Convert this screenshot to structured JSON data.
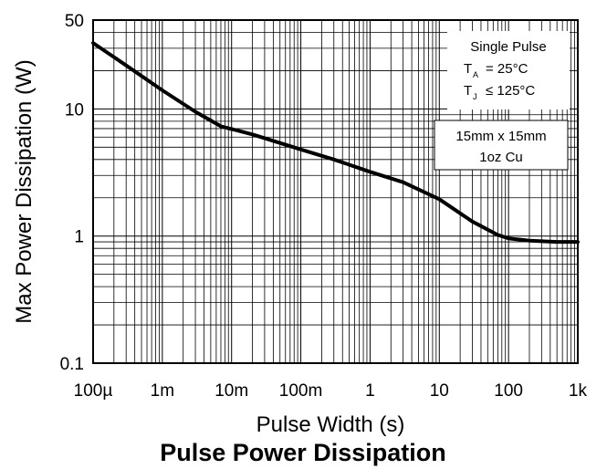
{
  "chart_data": {
    "type": "line",
    "title": "Pulse Power Dissipation",
    "xlabel": "Pulse Width (s)",
    "ylabel": "Max Power Dissipation (W)",
    "xscale": "log",
    "yscale": "log",
    "xlim": [
      0.0001,
      1000
    ],
    "ylim": [
      0.1,
      50
    ],
    "grid": true,
    "x_ticks": [
      {
        "value": 0.0001,
        "label": "100µ"
      },
      {
        "value": 0.001,
        "label": "1m"
      },
      {
        "value": 0.01,
        "label": "10m"
      },
      {
        "value": 0.1,
        "label": "100m"
      },
      {
        "value": 1,
        "label": "1"
      },
      {
        "value": 10,
        "label": "10"
      },
      {
        "value": 100,
        "label": "100"
      },
      {
        "value": 1000,
        "label": "1k"
      }
    ],
    "y_ticks": [
      {
        "value": 0.1,
        "label": "0.1"
      },
      {
        "value": 1,
        "label": "1"
      },
      {
        "value": 10,
        "label": "10"
      },
      {
        "value": 50,
        "label": "50"
      }
    ],
    "series": [
      {
        "color": "#000000",
        "x": [
          0.0001,
          0.0003,
          0.001,
          0.003,
          0.007,
          0.02,
          0.05,
          0.1,
          0.3,
          1,
          3,
          10,
          30,
          70,
          100,
          200,
          500,
          1000
        ],
        "y": [
          33,
          22,
          14,
          9.5,
          7.3,
          6.3,
          5.4,
          4.8,
          4.0,
          3.2,
          2.65,
          1.95,
          1.3,
          1.02,
          0.96,
          0.92,
          0.9,
          0.9
        ]
      }
    ],
    "annotations": [
      {
        "lines": [
          "Single Pulse",
          "T",
          "A",
          "= 25°C",
          "T",
          "J",
          "≤ 125°C"
        ]
      },
      {
        "lines": [
          "15mm x 15mm",
          "1oz Cu"
        ]
      }
    ]
  },
  "annotation_box_1": {
    "line1": "Single Pulse",
    "ta_symbol": "T",
    "ta_sub": "A",
    "ta_value": "= 25°C",
    "tj_symbol": "T",
    "tj_sub": "J",
    "tj_value": "≤ 125°C"
  },
  "annotation_box_2": {
    "line1": "15mm x 15mm",
    "line2": "1oz Cu"
  }
}
